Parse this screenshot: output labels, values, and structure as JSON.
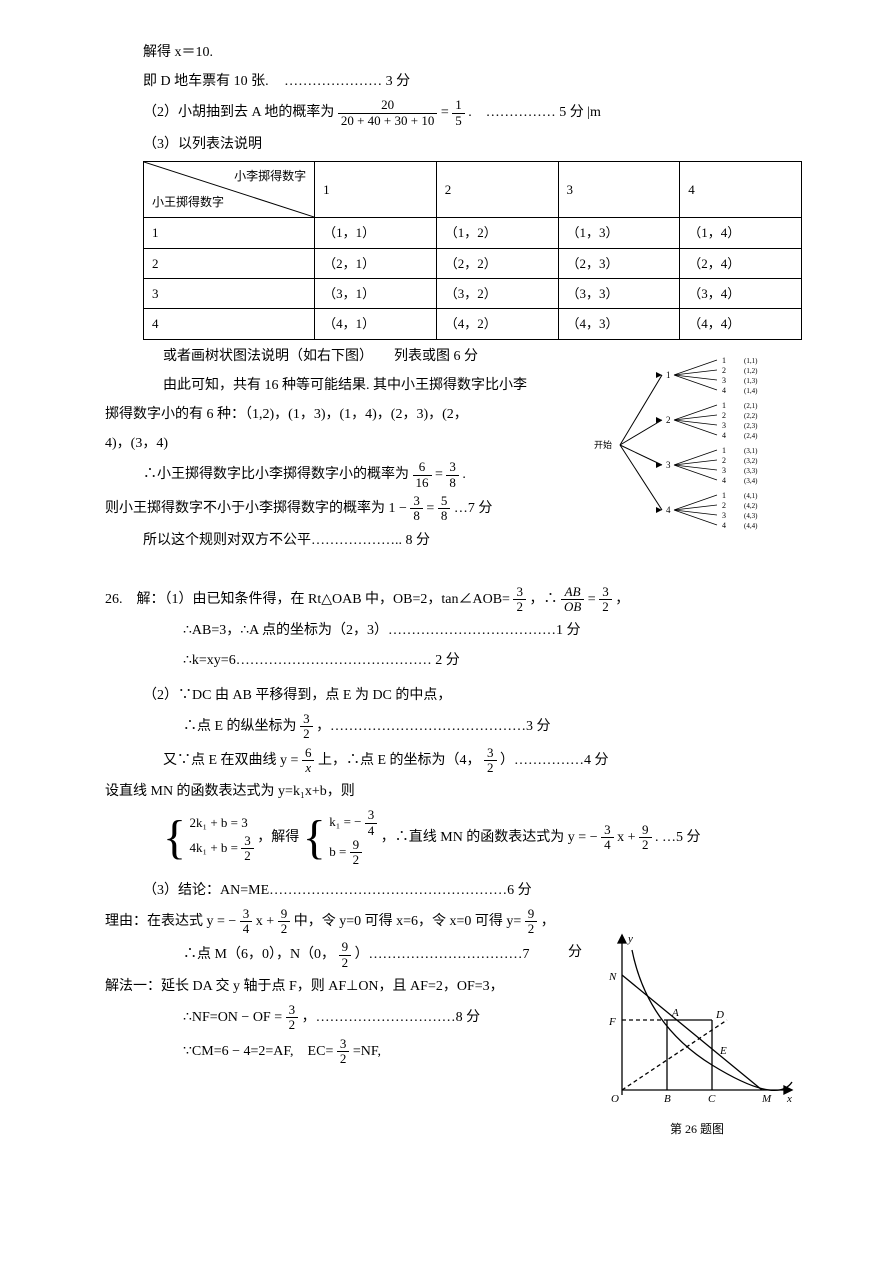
{
  "p1": {
    "l1": "解得 x＝10.",
    "l2a": "即 D 地车票有 10 张.",
    "l2b": "………………… 3 分",
    "l3a": "（2）小胡抽到去 A 地的概率为",
    "l3_num": "20",
    "l3_den": "20 + 40 + 30 + 10",
    "l3_eq": " = ",
    "l3_num2": "1",
    "l3_den2": "5",
    "l3b": ".　…………… 5 分 |m",
    "l4": "（3）以列表法说明"
  },
  "table": {
    "h_top": "小李掷得数字",
    "h_bot": "小王掷得数字",
    "cols": [
      "1",
      "2",
      "3",
      "4"
    ],
    "rows": [
      [
        "1",
        "（1，1）",
        "（1，2）",
        "（1，3）",
        "（1，4）"
      ],
      [
        "2",
        "（2，1）",
        "（2，2）",
        "（2，3）",
        "（2，4）"
      ],
      [
        "3",
        "（3，1）",
        "（3，2）",
        "（3，3）",
        "（3，4）"
      ],
      [
        "4",
        "（4，1）",
        "（4，2）",
        "（4，3）",
        "（4，4）"
      ]
    ]
  },
  "p2": {
    "l1": "或者画树状图法说明（如右下图）　　列表或图 6 分",
    "l2": "由此可知，共有 16 种等可能结果. 其中小王掷得数字比小李",
    "l3": "掷得数字小的有 6 种：（1,2)，(1，3)，(1，4)，(2，3)，(2，",
    "l4": "4)，(3，4)",
    "l5a": "∴小王掷得数字比小李掷得数字小的概率为",
    "l5_n1": "6",
    "l5_d1": "16",
    "l5_eq": " = ",
    "l5_n2": "3",
    "l5_d2": "8",
    "l5b": ".",
    "l6a": "则小王掷得数字不小于小李掷得数字的概率为 1 − ",
    "l6_n1": "3",
    "l6_d1": "8",
    "l6_eq": " = ",
    "l6_n2": "5",
    "l6_d2": "8",
    "l6b": "…7 分",
    "l7": "所以这个规则对双方不公平……………….. 8 分"
  },
  "tree": {
    "start": "开始",
    "branches": [
      "1",
      "2",
      "3",
      "4"
    ],
    "leaves": [
      "1",
      "2",
      "3",
      "4"
    ],
    "out1": [
      "(1,1)",
      "(1,2)",
      "(1,3)",
      "(1,4)"
    ],
    "out2": [
      "(2,1)",
      "(2,2)",
      "(2,3)",
      "(2,4)"
    ],
    "out3": [
      "(3,1)",
      "(3,2)",
      "(3,3)",
      "(3,4)"
    ],
    "out4": [
      "(4,1)",
      "(4,2)",
      "(4,3)",
      "(4,4)"
    ]
  },
  "q26": {
    "head": "26.　解：（1）由已知条件得，在 Rt△OAB 中，OB=2，tan∠AOB=",
    "f1n": "3",
    "f1d": "2",
    "head2": "，∴ ",
    "f2n": "AB",
    "f2d": "OB",
    "head3": " = ",
    "f3n": "3",
    "f3d": "2",
    "head4": "，",
    "l2": "∴AB=3，∴A 点的坐标为（2，3）………………………………1 分",
    "l3": "∴k=xy=6…………………………………… 2 分",
    "l4": "（2）∵DC 由 AB 平移得到，点 E 为 DC 的中点，",
    "l5a": "∴点 E 的纵坐标为 ",
    "l5n": "3",
    "l5d": "2",
    "l5b": "，……………………………………3 分",
    "l6a": "又∵点 E 在双曲线 y = ",
    "l6n": "6",
    "l6d": "x",
    "l6b": " 上，∴点 E 的坐标为（4，",
    "l6n2": "3",
    "l6d2": "2",
    "l6c": "）……………4 分",
    "l7": "设直线 MN 的函数表达式为 y=k₁x+b，则",
    "eq1a": "2k₁ + b = 3",
    "eq1b_l": "4k₁ + b = ",
    "eq1b_n": "3",
    "eq1b_d": "2",
    "eqmid": "，解得",
    "eq2a_l": "k₁ = − ",
    "eq2a_n": "3",
    "eq2a_d": "4",
    "eq2b_l": "b = ",
    "eq2b_n": "9",
    "eq2b_d": "2",
    "eqend_a": "，∴直线 MN 的函数表达式为 y = − ",
    "eqend_n1": "3",
    "eqend_d1": "4",
    "eqend_m": " x + ",
    "eqend_n2": "9",
    "eqend_d2": "2",
    "eqend_b": ". …5 分",
    "l8": "（3）结论：AN=ME……………………………………………6 分",
    "l9a": "理由：在表达式 y = − ",
    "l9n1": "3",
    "l9d1": "4",
    "l9m": " x + ",
    "l9n2": "9",
    "l9d2": "2",
    "l9b": " 中，令 y=0 可得 x=6，令 x=0 可得 y=",
    "l9n3": "9",
    "l9d3": "2",
    "l9c": "，",
    "l10fen": "分",
    "l10a": "∴点 M（6，0），N（0，",
    "l10n": "9",
    "l10d": "2",
    "l10b": "）……………………………7",
    "l11": "解法一：延长 DA 交 y 轴于点 F，则 AF⊥ON，且 AF=2，OF=3，",
    "l12a": "∴NF=ON − OF = ",
    "l12n": "3",
    "l12d": "2",
    "l12b": "，…………………………8 分",
    "l13a": "∵CM=6 − 4=2=AF,　EC=",
    "l13n": "3",
    "l13d": "2",
    "l13b": " =NF,"
  },
  "graph": {
    "labels": {
      "y": "y",
      "x": "x",
      "N": "N",
      "F": "F",
      "A": "A",
      "D": "D",
      "E": "E",
      "M": "M",
      "O": "O",
      "B": "B",
      "C": "C"
    },
    "caption": "第 26 题图"
  },
  "style": {
    "text_color": "#000000",
    "bg": "#ffffff",
    "line_color": "#000000"
  }
}
